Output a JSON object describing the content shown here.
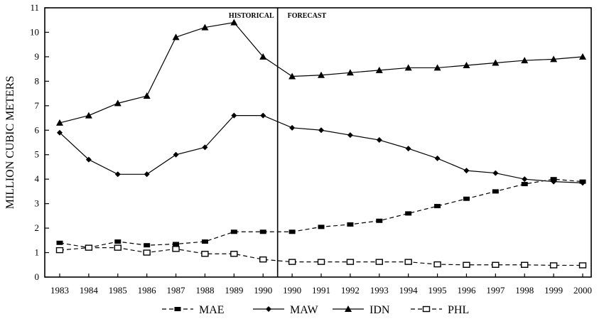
{
  "chart_data": {
    "type": "line",
    "ylabel": "MILLION CUBIC METERS",
    "xlabel": "",
    "ylim": [
      0,
      11
    ],
    "yticks": [
      "0",
      "1",
      "2",
      "3",
      "4",
      "5",
      "6",
      "7",
      "8",
      "9",
      "10",
      "11"
    ],
    "categories": [
      "1983",
      "1984",
      "1985",
      "1986",
      "1987",
      "1988",
      "1989",
      "1990",
      "1990",
      "1991",
      "1992",
      "1993",
      "1994",
      "1995",
      "1996",
      "1997",
      "1998",
      "1999",
      "2000"
    ],
    "regions": {
      "historical": "HISTORICAL",
      "forecast": "FORECAST"
    },
    "divider_after_index": 7,
    "grid": false,
    "legend_position": "bottom",
    "series": [
      {
        "name": "MAE",
        "marker": "filled-square",
        "values": [
          1.4,
          1.2,
          1.45,
          1.3,
          1.35,
          1.45,
          1.85,
          1.85,
          1.85,
          2.05,
          2.15,
          2.3,
          2.6,
          2.9,
          3.2,
          3.5,
          3.8,
          4.0,
          3.9
        ]
      },
      {
        "name": "MAW",
        "marker": "diamond",
        "values": [
          5.9,
          4.8,
          4.2,
          4.2,
          5.0,
          5.3,
          6.6,
          6.6,
          6.1,
          6.0,
          5.8,
          5.6,
          5.25,
          4.85,
          4.35,
          4.25,
          4.0,
          3.9,
          3.85
        ]
      },
      {
        "name": "IDN",
        "marker": "triangle",
        "values": [
          6.3,
          6.6,
          7.1,
          7.4,
          9.8,
          10.2,
          10.4,
          9.0,
          8.2,
          8.25,
          8.35,
          8.45,
          8.55,
          8.55,
          8.65,
          8.75,
          8.85,
          8.9,
          9.0
        ]
      },
      {
        "name": "PHL",
        "marker": "open-square",
        "values": [
          1.1,
          1.2,
          1.2,
          1.0,
          1.15,
          0.95,
          0.95,
          0.72,
          0.62,
          0.62,
          0.62,
          0.62,
          0.62,
          0.52,
          0.5,
          0.5,
          0.5,
          0.48,
          0.48
        ]
      }
    ]
  }
}
